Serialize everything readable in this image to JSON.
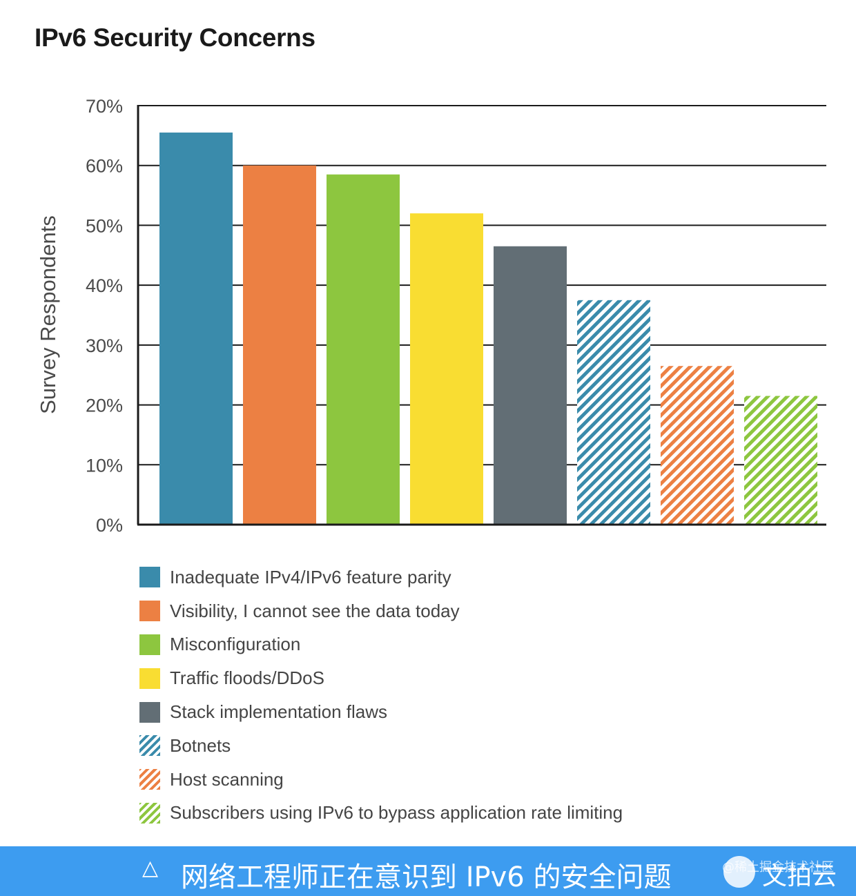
{
  "chart_data": {
    "type": "bar",
    "title": "IPv6 Security Concerns",
    "xlabel": "",
    "ylabel": "Survey Respondents",
    "ylim": [
      0,
      70
    ],
    "yticks": [
      "0%",
      "10%",
      "20%",
      "30%",
      "40%",
      "50%",
      "60%",
      "70%"
    ],
    "grid": true,
    "legend_position": "bottom",
    "categories": [
      "Inadequate IPv4/IPv6 feature parity",
      "Visibility, I cannot see the data today",
      "Misconfiguration",
      "Traffic floods/DDoS",
      "Stack implementation flaws",
      "Botnets",
      "Host scanning",
      "Subscribers using IPv6 to bypass application rate limiting"
    ],
    "values": [
      65.5,
      60,
      58.5,
      52,
      46.5,
      37.5,
      26.5,
      21.5
    ],
    "colors": [
      "#3a8bab",
      "#ec8043",
      "#8dc63f",
      "#f9dd32",
      "#626e75",
      "#3a8bab",
      "#ec8043",
      "#8dc63f"
    ],
    "patterns": [
      "solid",
      "solid",
      "solid",
      "solid",
      "solid",
      "hatched",
      "hatched",
      "hatched"
    ]
  },
  "caption": {
    "icon": "△",
    "text": "网络工程师正在意识到 IPv6 的安全问题",
    "background": "#3d9cf0"
  },
  "watermark": {
    "community": "@稀土掘金技术社区",
    "brand": "文拍云"
  }
}
